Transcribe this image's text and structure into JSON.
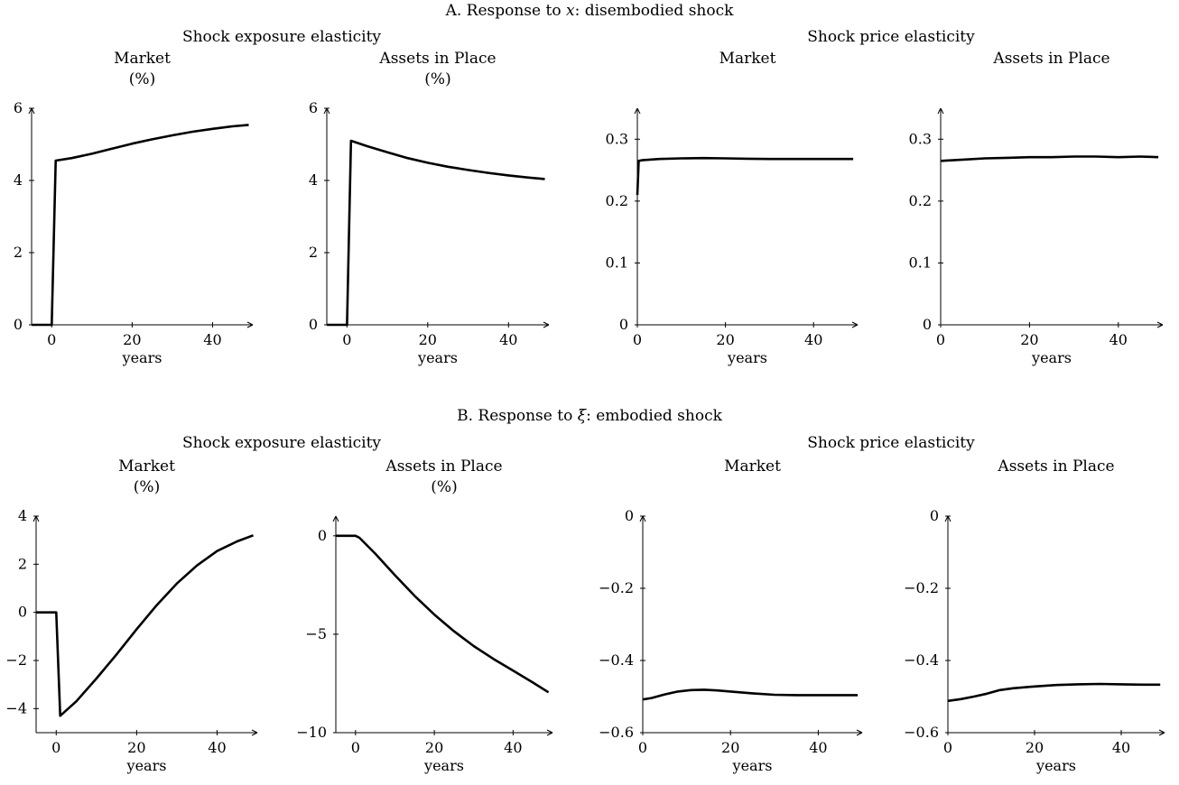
{
  "panels": [
    {
      "title_prefix": "A. Response to ",
      "title_symbol": "x",
      "title_suffix": ": disembodied shock",
      "groups": [
        "Shock exposure elasticity",
        "Shock price elasticity"
      ]
    },
    {
      "title_prefix": "B. Response to ",
      "title_symbol": "ξ",
      "title_suffix": ": embodied shock",
      "groups": [
        "Shock exposure elasticity",
        "Shock price elasticity"
      ]
    }
  ],
  "chart_data": [
    {
      "type": "line",
      "panel": "A",
      "group": "Shock exposure elasticity",
      "title": "Market",
      "subtitle": "(%)",
      "xlabel": "years",
      "ylabel": "",
      "xlim": [
        -5,
        50
      ],
      "ylim": [
        0,
        6
      ],
      "xticks": [
        0,
        20,
        40
      ],
      "yticks": [
        0,
        2,
        4,
        6
      ],
      "yticklabels": [
        "0",
        "2",
        "4",
        "6"
      ],
      "series": [
        {
          "x": [
            -5,
            0,
            1,
            5,
            10,
            15,
            20,
            25,
            30,
            35,
            40,
            45,
            49
          ],
          "y": [
            0,
            0,
            4.55,
            4.62,
            4.74,
            4.88,
            5.02,
            5.14,
            5.25,
            5.35,
            5.43,
            5.5,
            5.54
          ]
        }
      ]
    },
    {
      "type": "line",
      "panel": "A",
      "group": "Shock exposure elasticity",
      "title": "Assets in Place",
      "subtitle": "(%)",
      "xlabel": "years",
      "ylabel": "",
      "xlim": [
        -5,
        50
      ],
      "ylim": [
        0,
        6
      ],
      "xticks": [
        0,
        20,
        40
      ],
      "yticks": [
        0,
        2,
        4,
        6
      ],
      "yticklabels": [
        "0",
        "2",
        "4",
        "6"
      ],
      "series": [
        {
          "x": [
            -5,
            0,
            1,
            5,
            10,
            15,
            20,
            25,
            30,
            35,
            40,
            45,
            49
          ],
          "y": [
            0,
            0,
            5.1,
            4.95,
            4.78,
            4.62,
            4.49,
            4.38,
            4.29,
            4.21,
            4.14,
            4.08,
            4.04
          ]
        }
      ]
    },
    {
      "type": "line",
      "panel": "A",
      "group": "Shock price elasticity",
      "title": "Market",
      "subtitle": "",
      "xlabel": "years",
      "ylabel": "",
      "xlim": [
        0,
        50
      ],
      "ylim": [
        0,
        0.35
      ],
      "xticks": [
        0,
        20,
        40
      ],
      "yticks": [
        0,
        0.1,
        0.2,
        0.3
      ],
      "yticklabels": [
        "0",
        "0.1",
        "0.2",
        "0.3"
      ],
      "series": [
        {
          "x": [
            0,
            0.3,
            1,
            5,
            10,
            15,
            20,
            25,
            30,
            35,
            40,
            45,
            49
          ],
          "y": [
            0.21,
            0.265,
            0.266,
            0.268,
            0.269,
            0.2695,
            0.269,
            0.2685,
            0.268,
            0.268,
            0.268,
            0.268,
            0.268
          ]
        }
      ]
    },
    {
      "type": "line",
      "panel": "A",
      "group": "Shock price elasticity",
      "title": "Assets in Place",
      "subtitle": "",
      "xlabel": "years",
      "ylabel": "",
      "xlim": [
        0,
        50
      ],
      "ylim": [
        0,
        0.35
      ],
      "xticks": [
        0,
        20,
        40
      ],
      "yticks": [
        0,
        0.1,
        0.2,
        0.3
      ],
      "yticklabels": [
        "0",
        "0.1",
        "0.2",
        "0.3"
      ],
      "series": [
        {
          "x": [
            0,
            5,
            10,
            15,
            20,
            25,
            30,
            35,
            40,
            45,
            49
          ],
          "y": [
            0.265,
            0.267,
            0.269,
            0.27,
            0.271,
            0.271,
            0.272,
            0.272,
            0.271,
            0.272,
            0.271
          ]
        }
      ]
    },
    {
      "type": "line",
      "panel": "B",
      "group": "Shock exposure elasticity",
      "title": "Market",
      "subtitle": "(%)",
      "xlabel": "years",
      "ylabel": "",
      "xlim": [
        -5,
        50
      ],
      "ylim": [
        -5,
        4
      ],
      "xticks": [
        0,
        20,
        40
      ],
      "yticks": [
        -4,
        -2,
        0,
        2,
        4
      ],
      "yticklabels": [
        "−4",
        "−2",
        "0",
        "2",
        "4"
      ],
      "series": [
        {
          "x": [
            -5,
            0,
            1,
            5,
            10,
            15,
            20,
            25,
            30,
            35,
            40,
            45,
            49
          ],
          "y": [
            0,
            0,
            -4.3,
            -3.7,
            -2.75,
            -1.75,
            -0.7,
            0.3,
            1.2,
            1.95,
            2.55,
            2.95,
            3.2
          ]
        }
      ]
    },
    {
      "type": "line",
      "panel": "B",
      "group": "Shock exposure elasticity",
      "title": "Assets in Place",
      "subtitle": "(%)",
      "xlabel": "years",
      "ylabel": "",
      "xlim": [
        -5,
        50
      ],
      "ylim": [
        -10,
        1
      ],
      "xticks": [
        0,
        20,
        40
      ],
      "yticks": [
        -10,
        -5,
        0
      ],
      "yticklabels": [
        "−10",
        "−5",
        "0"
      ],
      "series": [
        {
          "x": [
            -5,
            0,
            1,
            5,
            10,
            15,
            20,
            25,
            30,
            35,
            40,
            45,
            49
          ],
          "y": [
            0,
            0,
            -0.1,
            -0.9,
            -2.0,
            -3.05,
            -4.0,
            -4.85,
            -5.6,
            -6.25,
            -6.85,
            -7.45,
            -7.95
          ]
        }
      ]
    },
    {
      "type": "line",
      "panel": "B",
      "group": "Shock price elasticity",
      "title": "Market",
      "subtitle": "",
      "xlabel": "years",
      "ylabel": "",
      "xlim": [
        0,
        50
      ],
      "ylim": [
        -0.6,
        0
      ],
      "xticks": [
        0,
        20,
        40
      ],
      "yticks": [
        -0.6,
        -0.4,
        -0.2,
        0
      ],
      "yticklabels": [
        "−0.6",
        "−0.4",
        "−0.2",
        "0"
      ],
      "series": [
        {
          "x": [
            0,
            2,
            5,
            8,
            11,
            14,
            17,
            20,
            25,
            30,
            35,
            40,
            45,
            49
          ],
          "y": [
            -0.508,
            -0.504,
            -0.494,
            -0.486,
            -0.482,
            -0.481,
            -0.483,
            -0.486,
            -0.491,
            -0.495,
            -0.496,
            -0.496,
            -0.496,
            -0.496
          ]
        }
      ]
    },
    {
      "type": "line",
      "panel": "B",
      "group": "Shock price elasticity",
      "title": "Assets in Place",
      "subtitle": "",
      "xlabel": "years",
      "ylabel": "",
      "xlim": [
        0,
        50
      ],
      "ylim": [
        -0.6,
        0
      ],
      "xticks": [
        0,
        20,
        40
      ],
      "yticks": [
        -0.6,
        -0.4,
        -0.2,
        0
      ],
      "yticklabels": [
        "−0.6",
        "−0.4",
        "−0.2",
        "0"
      ],
      "series": [
        {
          "x": [
            0,
            3,
            6,
            9,
            12,
            15,
            20,
            25,
            30,
            35,
            40,
            45,
            49
          ],
          "y": [
            -0.512,
            -0.507,
            -0.5,
            -0.492,
            -0.482,
            -0.477,
            -0.472,
            -0.468,
            -0.466,
            -0.465,
            -0.466,
            -0.467,
            -0.467
          ]
        }
      ]
    }
  ]
}
